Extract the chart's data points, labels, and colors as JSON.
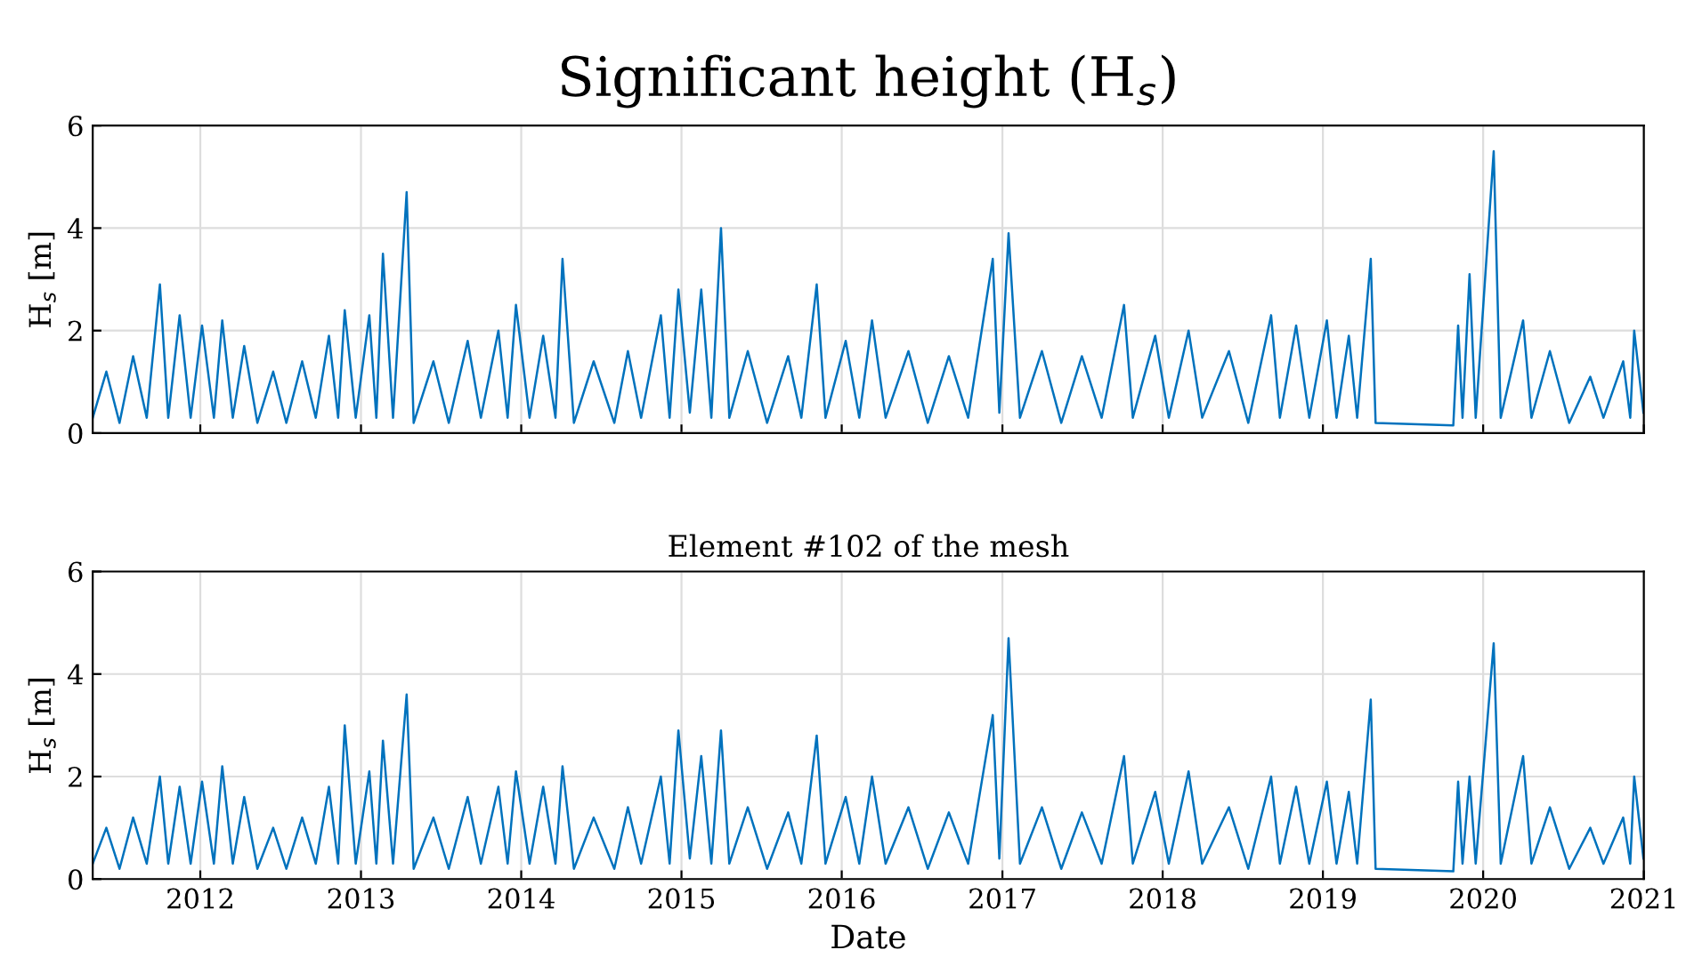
{
  "chart_data": [
    {
      "type": "line",
      "title": "Significant height (H$_{s}$)",
      "ylabel": "H$_{s}$ [m]",
      "x": [
        "2011-05-01",
        "2011-06-01",
        "2011-07-01",
        "2011-08-01",
        "2011-09-01",
        "2011-10-01",
        "2011-10-20",
        "2011-11-15",
        "2011-12-10",
        "2012-01-05",
        "2012-02-01",
        "2012-02-20",
        "2012-03-15",
        "2012-04-10",
        "2012-05-10",
        "2012-06-15",
        "2012-07-15",
        "2012-08-20",
        "2012-09-20",
        "2012-10-20",
        "2012-11-10",
        "2012-11-25",
        "2012-12-20",
        "2013-01-20",
        "2013-02-05",
        "2013-02-20",
        "2013-03-15",
        "2013-04-15",
        "2013-05-01",
        "2013-06-15",
        "2013-07-20",
        "2013-09-01",
        "2013-10-01",
        "2013-11-10",
        "2013-12-01",
        "2013-12-20",
        "2014-01-20",
        "2014-02-20",
        "2014-03-20",
        "2014-04-05",
        "2014-05-01",
        "2014-06-15",
        "2014-08-01",
        "2014-09-01",
        "2014-10-01",
        "2014-11-15",
        "2014-12-05",
        "2014-12-25",
        "2015-01-20",
        "2015-02-15",
        "2015-03-10",
        "2015-04-01",
        "2015-04-20",
        "2015-06-01",
        "2015-07-15",
        "2015-09-01",
        "2015-10-01",
        "2015-11-05",
        "2015-11-25",
        "2016-01-10",
        "2016-02-10",
        "2016-03-10",
        "2016-04-10",
        "2016-06-01",
        "2016-07-15",
        "2016-09-01",
        "2016-10-15",
        "2016-12-10",
        "2016-12-25",
        "2017-01-15",
        "2017-02-10",
        "2017-04-01",
        "2017-05-15",
        "2017-07-01",
        "2017-08-15",
        "2017-10-05",
        "2017-10-25",
        "2017-12-15",
        "2018-01-15",
        "2018-03-01",
        "2018-04-01",
        "2018-06-01",
        "2018-07-15",
        "2018-09-05",
        "2018-09-25",
        "2018-11-01",
        "2018-12-01",
        "2019-01-10",
        "2019-02-01",
        "2019-03-01",
        "2019-03-20",
        "2019-04-20",
        "2019-05-01",
        "2019-10-25",
        "2019-11-05",
        "2019-11-15",
        "2019-12-01",
        "2019-12-15",
        "2020-01-25",
        "2020-02-10",
        "2020-04-01",
        "2020-04-20",
        "2020-06-01",
        "2020-07-15",
        "2020-09-01",
        "2020-10-01",
        "2020-11-15",
        "2020-12-01",
        "2020-12-10",
        "2020-12-31"
      ],
      "series": [
        {
          "color": "#0072bd",
          "values": [
            0.3,
            1.2,
            0.2,
            1.5,
            0.3,
            2.9,
            0.3,
            2.3,
            0.3,
            2.1,
            0.3,
            2.2,
            0.3,
            1.7,
            0.2,
            1.2,
            0.2,
            1.4,
            0.3,
            1.9,
            0.3,
            2.4,
            0.3,
            2.3,
            0.3,
            3.5,
            0.3,
            4.7,
            0.2,
            1.4,
            0.2,
            1.8,
            0.3,
            2.0,
            0.3,
            2.5,
            0.3,
            1.9,
            0.3,
            3.4,
            0.2,
            1.4,
            0.2,
            1.6,
            0.3,
            2.3,
            0.3,
            2.8,
            0.4,
            2.8,
            0.3,
            4.0,
            0.3,
            1.6,
            0.2,
            1.5,
            0.3,
            2.9,
            0.3,
            1.8,
            0.3,
            2.2,
            0.3,
            1.6,
            0.2,
            1.5,
            0.3,
            3.4,
            0.4,
            3.9,
            0.3,
            1.6,
            0.2,
            1.5,
            0.3,
            2.5,
            0.3,
            1.9,
            0.3,
            2.0,
            0.3,
            1.6,
            0.2,
            2.3,
            0.3,
            2.1,
            0.3,
            2.2,
            0.3,
            1.9,
            0.3,
            3.4,
            0.2,
            0.15,
            2.1,
            0.3,
            3.1,
            0.3,
            5.5,
            0.3,
            2.2,
            0.3,
            1.6,
            0.2,
            1.1,
            0.3,
            1.4,
            0.3,
            2.0,
            0.4
          ]
        }
      ],
      "xlim": [
        "2011-05-01",
        "2021-01-01"
      ],
      "xticks": [
        {
          "value": "2012-01-01",
          "label": null
        },
        {
          "value": "2013-01-01",
          "label": null
        },
        {
          "value": "2014-01-01",
          "label": null
        },
        {
          "value": "2015-01-01",
          "label": null
        },
        {
          "value": "2016-01-01",
          "label": null
        },
        {
          "value": "2017-01-01",
          "label": null
        },
        {
          "value": "2018-01-01",
          "label": null
        },
        {
          "value": "2019-01-01",
          "label": null
        },
        {
          "value": "2020-01-01",
          "label": null
        },
        {
          "value": "2021-01-01",
          "label": null
        }
      ],
      "ylim": [
        0,
        6
      ],
      "yticks": [
        0,
        2,
        4,
        6
      ],
      "grid": true,
      "tick_labels": "y",
      "marker": "none",
      "line_style": "solid"
    },
    {
      "type": "line",
      "title": "Element #102 of the mesh",
      "ylabel": "H$_{s}$ [m]",
      "xlabel": "Date",
      "x": [
        "2011-05-01",
        "2011-06-01",
        "2011-07-01",
        "2011-08-01",
        "2011-09-01",
        "2011-10-01",
        "2011-10-20",
        "2011-11-15",
        "2011-12-10",
        "2012-01-05",
        "2012-02-01",
        "2012-02-20",
        "2012-03-15",
        "2012-04-10",
        "2012-05-10",
        "2012-06-15",
        "2012-07-15",
        "2012-08-20",
        "2012-09-20",
        "2012-10-20",
        "2012-11-10",
        "2012-11-25",
        "2012-12-20",
        "2013-01-20",
        "2013-02-05",
        "2013-02-20",
        "2013-03-15",
        "2013-04-15",
        "2013-05-01",
        "2013-06-15",
        "2013-07-20",
        "2013-09-01",
        "2013-10-01",
        "2013-11-10",
        "2013-12-01",
        "2013-12-20",
        "2014-01-20",
        "2014-02-20",
        "2014-03-20",
        "2014-04-05",
        "2014-05-01",
        "2014-06-15",
        "2014-08-01",
        "2014-09-01",
        "2014-10-01",
        "2014-11-15",
        "2014-12-05",
        "2014-12-25",
        "2015-01-20",
        "2015-02-15",
        "2015-03-10",
        "2015-04-01",
        "2015-04-20",
        "2015-06-01",
        "2015-07-15",
        "2015-09-01",
        "2015-10-01",
        "2015-11-05",
        "2015-11-25",
        "2016-01-10",
        "2016-02-10",
        "2016-03-10",
        "2016-04-10",
        "2016-06-01",
        "2016-07-15",
        "2016-09-01",
        "2016-10-15",
        "2016-12-10",
        "2016-12-25",
        "2017-01-15",
        "2017-02-10",
        "2017-04-01",
        "2017-05-15",
        "2017-07-01",
        "2017-08-15",
        "2017-10-05",
        "2017-10-25",
        "2017-12-15",
        "2018-01-15",
        "2018-03-01",
        "2018-04-01",
        "2018-06-01",
        "2018-07-15",
        "2018-09-05",
        "2018-09-25",
        "2018-11-01",
        "2018-12-01",
        "2019-01-10",
        "2019-02-01",
        "2019-03-01",
        "2019-03-20",
        "2019-04-20",
        "2019-05-01",
        "2019-10-25",
        "2019-11-05",
        "2019-11-15",
        "2019-12-01",
        "2019-12-15",
        "2020-01-25",
        "2020-02-10",
        "2020-04-01",
        "2020-04-20",
        "2020-06-01",
        "2020-07-15",
        "2020-09-01",
        "2020-10-01",
        "2020-11-15",
        "2020-12-01",
        "2020-12-10",
        "2020-12-31"
      ],
      "series": [
        {
          "color": "#0072bd",
          "values": [
            0.3,
            1.0,
            0.2,
            1.2,
            0.3,
            2.0,
            0.3,
            1.8,
            0.3,
            1.9,
            0.3,
            2.2,
            0.3,
            1.6,
            0.2,
            1.0,
            0.2,
            1.2,
            0.3,
            1.8,
            0.3,
            3.0,
            0.3,
            2.1,
            0.3,
            2.7,
            0.3,
            3.6,
            0.2,
            1.2,
            0.2,
            1.6,
            0.3,
            1.8,
            0.3,
            2.1,
            0.3,
            1.8,
            0.3,
            2.2,
            0.2,
            1.2,
            0.2,
            1.4,
            0.3,
            2.0,
            0.3,
            2.9,
            0.4,
            2.4,
            0.3,
            2.9,
            0.3,
            1.4,
            0.2,
            1.3,
            0.3,
            2.8,
            0.3,
            1.6,
            0.3,
            2.0,
            0.3,
            1.4,
            0.2,
            1.3,
            0.3,
            3.2,
            0.4,
            4.7,
            0.3,
            1.4,
            0.2,
            1.3,
            0.3,
            2.4,
            0.3,
            1.7,
            0.3,
            2.1,
            0.3,
            1.4,
            0.2,
            2.0,
            0.3,
            1.8,
            0.3,
            1.9,
            0.3,
            1.7,
            0.3,
            3.5,
            0.2,
            0.15,
            1.9,
            0.3,
            2.0,
            0.3,
            4.6,
            0.3,
            2.4,
            0.3,
            1.4,
            0.2,
            1.0,
            0.3,
            1.2,
            0.3,
            2.0,
            0.4
          ]
        }
      ],
      "xlim": [
        "2011-05-01",
        "2021-01-01"
      ],
      "xticks": [
        {
          "value": "2012-01-01",
          "label": "2012"
        },
        {
          "value": "2013-01-01",
          "label": "2013"
        },
        {
          "value": "2014-01-01",
          "label": "2014"
        },
        {
          "value": "2015-01-01",
          "label": "2015"
        },
        {
          "value": "2016-01-01",
          "label": "2016"
        },
        {
          "value": "2017-01-01",
          "label": "2017"
        },
        {
          "value": "2018-01-01",
          "label": "2018"
        },
        {
          "value": "2019-01-01",
          "label": "2019"
        },
        {
          "value": "2020-01-01",
          "label": "2020"
        },
        {
          "value": "2021-01-01",
          "label": "2021"
        }
      ],
      "ylim": [
        0,
        6
      ],
      "yticks": [
        0,
        2,
        4,
        6
      ],
      "grid": true,
      "marker": "none",
      "line_style": "solid"
    }
  ]
}
